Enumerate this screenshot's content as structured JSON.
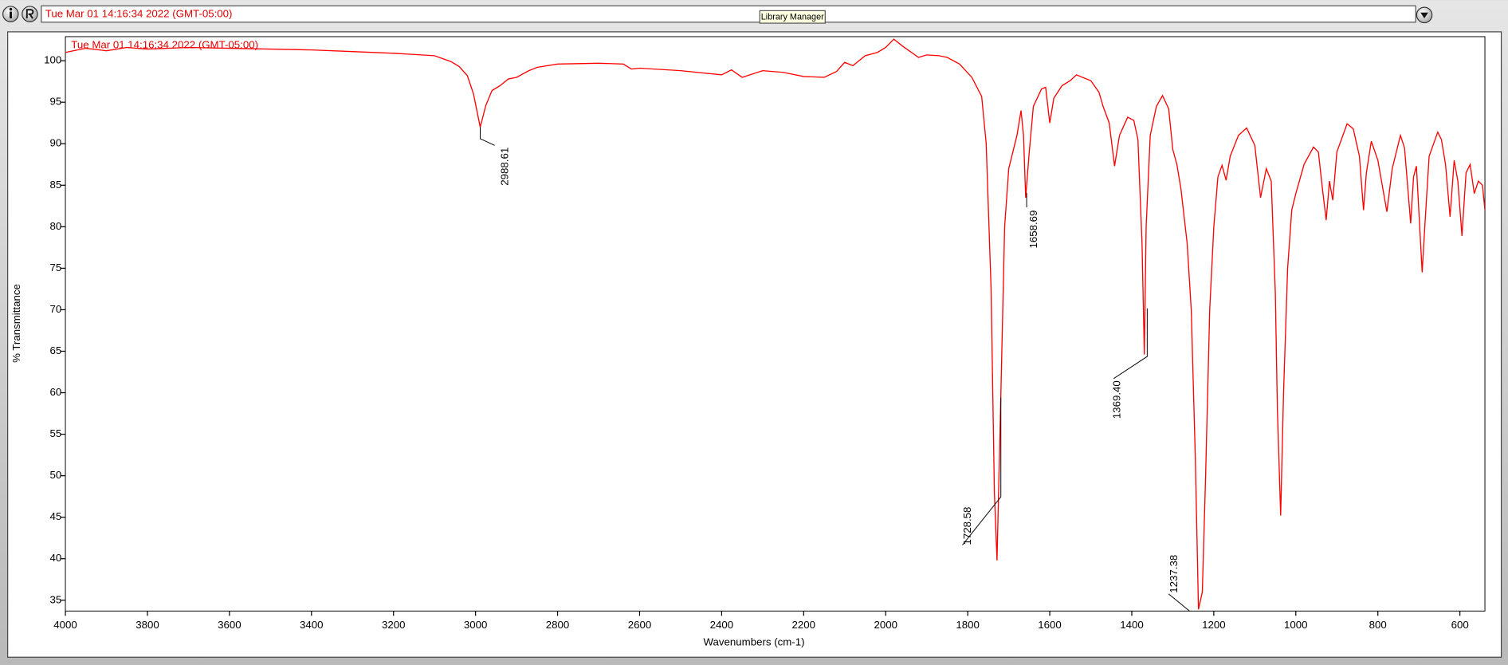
{
  "window": {
    "field_text": "Tue Mar 01 14:16:34 2022 (GMT-05:00)",
    "tooltip": "Library Manager"
  },
  "chart_data": {
    "type": "line",
    "subtitle": "Tue Mar 01 14:16:34 2022 (GMT-05:00)",
    "x_label": "Wavenumbers (cm-1)",
    "y_label": "% Transmittance",
    "xlim": [
      4000,
      539
    ],
    "ylim": [
      33.7,
      102.9
    ],
    "xticks": [
      4000,
      3800,
      3600,
      3400,
      3200,
      3000,
      2800,
      2600,
      2400,
      2200,
      2000,
      1800,
      1600,
      1400,
      1200,
      1000,
      800,
      600
    ],
    "yticks": [
      35,
      40,
      45,
      50,
      55,
      60,
      65,
      70,
      75,
      80,
      85,
      90,
      95,
      100
    ],
    "series": [
      {
        "color": "#ff0000",
        "x": [
          4000,
          3950,
          3900,
          3850,
          3800,
          3700,
          3600,
          3500,
          3400,
          3300,
          3200,
          3100,
          3060,
          3040,
          3020,
          3005,
          2988.61,
          2975,
          2960,
          2940,
          2920,
          2900,
          2870,
          2850,
          2800,
          2700,
          2640,
          2620,
          2600,
          2500,
          2400,
          2376,
          2350,
          2300,
          2250,
          2200,
          2150,
          2120,
          2100,
          2080,
          2050,
          2020,
          2000,
          1980,
          1960,
          1940,
          1920,
          1900,
          1870,
          1850,
          1820,
          1790,
          1766,
          1755,
          1743,
          1735,
          1728.58,
          1720,
          1710,
          1700,
          1680,
          1670,
          1664,
          1658.69,
          1650,
          1640,
          1620,
          1610,
          1600,
          1590,
          1570,
          1550,
          1535,
          1500,
          1480,
          1470,
          1455,
          1442,
          1430,
          1410,
          1395,
          1385,
          1375,
          1369.4,
          1365,
          1355,
          1340,
          1325,
          1310,
          1300,
          1290,
          1280,
          1265,
          1255,
          1245,
          1237.38,
          1228,
          1220,
          1210,
          1200,
          1190,
          1180,
          1170,
          1160,
          1140,
          1120,
          1100,
          1086,
          1072,
          1060,
          1050,
          1045,
          1037,
          1030,
          1020,
          1010,
          1000,
          980,
          957,
          945,
          935,
          926,
          918,
          910,
          900,
          875,
          860,
          845,
          835,
          828,
          816,
          800,
          778,
          765,
          745,
          735,
          720,
          713,
          706,
          692,
          685,
          675,
          654,
          645,
          635,
          624,
          614,
          605,
          595,
          585,
          575,
          565,
          555,
          545,
          539
        ],
        "values": [
          101.0,
          101.5,
          101.2,
          101.6,
          101.4,
          101.6,
          101.5,
          101.4,
          101.3,
          101.1,
          100.9,
          100.6,
          99.9,
          99.3,
          98.2,
          96.0,
          92.0,
          94.6,
          96.4,
          97.0,
          97.8,
          98.0,
          98.8,
          99.2,
          99.6,
          99.7,
          99.6,
          99.0,
          99.1,
          98.8,
          98.3,
          98.9,
          98.0,
          98.8,
          98.6,
          98.1,
          98.0,
          98.7,
          99.8,
          99.4,
          100.6,
          101.0,
          101.6,
          102.6,
          101.8,
          101.1,
          100.4,
          100.7,
          100.6,
          100.4,
          99.6,
          98.0,
          95.7,
          90.0,
          72.5,
          48.0,
          39.8,
          58.0,
          80.0,
          87.0,
          91.0,
          94.0,
          91.0,
          83.5,
          89.0,
          94.5,
          96.6,
          96.8,
          92.5,
          95.5,
          97.0,
          97.6,
          98.3,
          97.6,
          96.2,
          94.5,
          92.5,
          87.3,
          91.0,
          93.2,
          92.8,
          90.5,
          78.0,
          64.6,
          80.0,
          91.0,
          94.5,
          95.8,
          94.2,
          89.3,
          87.5,
          84.5,
          78.0,
          70.0,
          52.0,
          33.9,
          36.0,
          50.0,
          70.0,
          80.0,
          86.0,
          87.4,
          85.6,
          88.5,
          91.0,
          91.9,
          89.8,
          83.5,
          87.0,
          85.5,
          72.0,
          58.0,
          45.2,
          60.0,
          75.0,
          82.0,
          84.0,
          87.5,
          89.6,
          89.0,
          84.5,
          80.8,
          85.5,
          83.2,
          89.0,
          92.4,
          91.8,
          88.5,
          82.0,
          86.5,
          90.3,
          88.0,
          81.8,
          87.0,
          91.0,
          89.5,
          80.4,
          86.0,
          87.3,
          74.5,
          80.5,
          88.5,
          91.4,
          90.5,
          87.5,
          81.2,
          88.0,
          85.5,
          78.9,
          86.5,
          87.5,
          84.0,
          85.5,
          85.0,
          82.0
        ]
      }
    ],
    "annotations": [
      {
        "label": "2988.61",
        "x": 2988.61,
        "y": 92.0
      },
      {
        "label": "1728.58",
        "x": 1728.58,
        "y": 39.8
      },
      {
        "label": "1658.69",
        "x": 1658.69,
        "y": 83.5
      },
      {
        "label": "1369.40",
        "x": 1369.4,
        "y": 64.6
      },
      {
        "label": "1237.38",
        "x": 1237.38,
        "y": 33.9
      }
    ]
  }
}
